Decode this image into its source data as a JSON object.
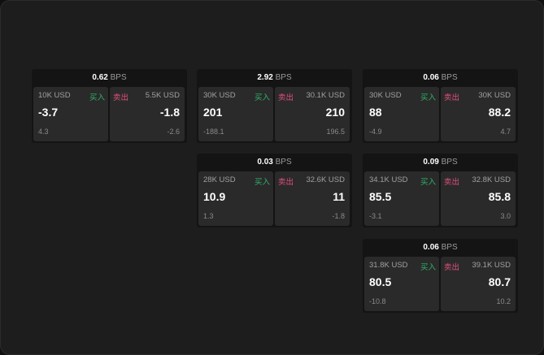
{
  "unit": "BPS",
  "buy_label": "买入",
  "sell_label": "卖出",
  "colors": {
    "buy": "#2fb36a",
    "sell": "#e0507a"
  },
  "cards": [
    {
      "spread": "0.62",
      "buy": {
        "size": "10K USD",
        "price": "-3.7",
        "change": "4.3"
      },
      "sell": {
        "size": "5.5K USD",
        "price": "-1.8",
        "change": "-2.6"
      }
    },
    {
      "spread": "2.92",
      "buy": {
        "size": "30K USD",
        "price": "201",
        "change": "-188.1"
      },
      "sell": {
        "size": "30.1K USD",
        "price": "210",
        "change": "196.5"
      }
    },
    {
      "spread": "0.06",
      "buy": {
        "size": "30K USD",
        "price": "88",
        "change": "-4.9"
      },
      "sell": {
        "size": "30K USD",
        "price": "88.2",
        "change": "4.7"
      }
    },
    {
      "spread": "0.03",
      "buy": {
        "size": "28K USD",
        "price": "10.9",
        "change": "1.3"
      },
      "sell": {
        "size": "32.6K USD",
        "price": "11",
        "change": "-1.8"
      }
    },
    {
      "spread": "0.09",
      "buy": {
        "size": "34.1K USD",
        "price": "85.5",
        "change": "-3.1"
      },
      "sell": {
        "size": "32.8K USD",
        "price": "85.8",
        "change": "3.0"
      }
    },
    {
      "spread": "0.06",
      "buy": {
        "size": "31.8K USD",
        "price": "80.5",
        "change": "-10.8"
      },
      "sell": {
        "size": "39.1K USD",
        "price": "80.7",
        "change": "10.2"
      }
    }
  ]
}
